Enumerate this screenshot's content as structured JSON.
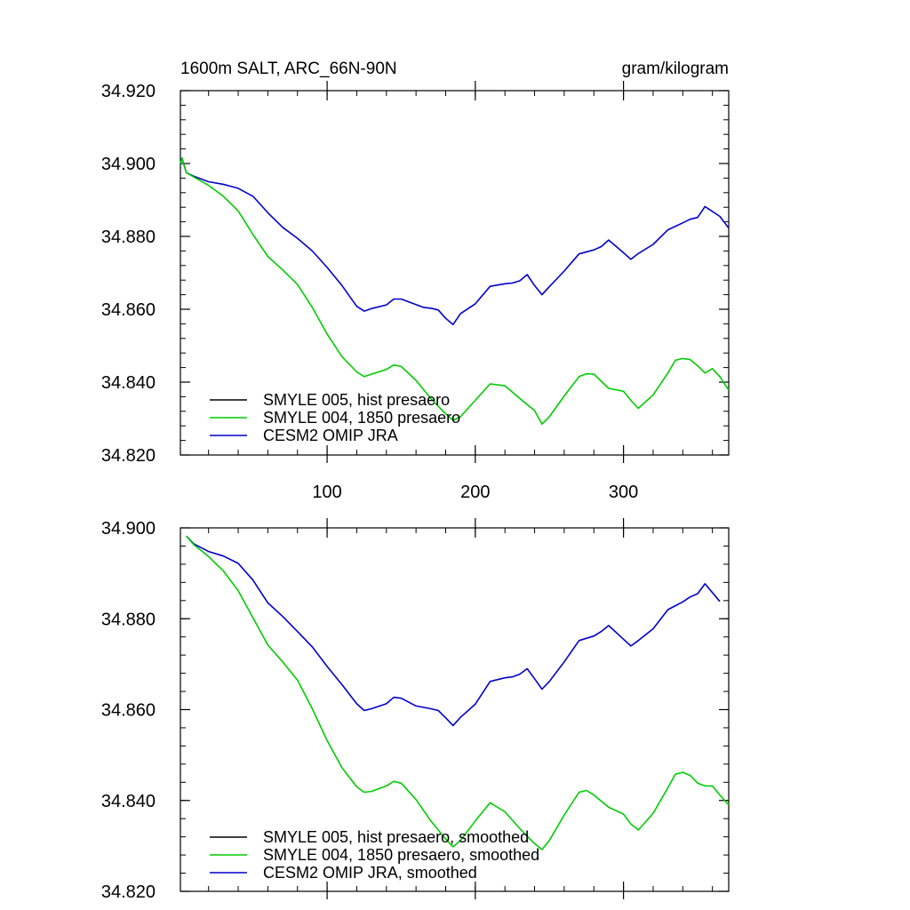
{
  "header": {
    "title": "1600m SALT, ARC_66N-90N",
    "units": "gram/kilogram"
  },
  "colors": {
    "smyle005": "#000000",
    "smyle004": "#00cc00",
    "omip": "#0000cc"
  },
  "chart_data": [
    {
      "type": "line",
      "title": "1600m SALT, ARC_66N-90N",
      "units": "gram/kilogram",
      "xlabel": "",
      "ylabel": "",
      "xlim": [
        1,
        371
      ],
      "ylim": [
        34.82,
        34.92
      ],
      "xticks": [
        100,
        200,
        300
      ],
      "xtick_labels": [
        "100",
        "200",
        "300"
      ],
      "yticks": [
        34.82,
        34.84,
        34.86,
        34.88,
        34.9,
        34.92
      ],
      "ytick_labels": [
        "34.820",
        "34.840",
        "34.860",
        "34.880",
        "34.900",
        "34.920"
      ],
      "legend": [
        "SMYLE 005, hist presaero",
        "SMYLE 004, 1850 presaero",
        "CESM2 OMIP JRA"
      ],
      "series": [
        {
          "name": "CESM2 OMIP JRA",
          "color": "#0000cc",
          "x": [
            1,
            2,
            5,
            10,
            20,
            30,
            40,
            50,
            60,
            70,
            80,
            90,
            100,
            110,
            120,
            125,
            130,
            140,
            145,
            150,
            160,
            165,
            170,
            175,
            180,
            185,
            190,
            200,
            210,
            220,
            225,
            230,
            235,
            240,
            245,
            250,
            260,
            270,
            280,
            285,
            290,
            300,
            305,
            310,
            320,
            330,
            340,
            345,
            350,
            355,
            365,
            371
          ],
          "y": [
            34.9,
            34.9015,
            34.8975,
            34.8965,
            34.895,
            34.8943,
            34.8932,
            34.891,
            34.8865,
            34.8825,
            34.8795,
            34.876,
            34.8715,
            34.8665,
            34.8608,
            34.8595,
            34.8602,
            34.8612,
            34.8628,
            34.8628,
            34.8613,
            34.8605,
            34.8603,
            34.8598,
            34.8575,
            34.8558,
            34.8588,
            34.8615,
            34.8663,
            34.867,
            34.8672,
            34.8678,
            34.8695,
            34.8665,
            34.864,
            34.8662,
            34.8705,
            34.8752,
            34.8763,
            34.8772,
            34.879,
            34.8755,
            34.8737,
            34.8753,
            34.8778,
            34.8818,
            34.8837,
            34.8847,
            34.8852,
            34.8882,
            34.8855,
            34.8823
          ]
        },
        {
          "name": "SMYLE 004, 1850 presaero",
          "color": "#00cc00",
          "x": [
            1,
            2,
            5,
            10,
            20,
            30,
            40,
            50,
            60,
            70,
            80,
            90,
            100,
            110,
            120,
            125,
            130,
            140,
            145,
            150,
            160,
            170,
            180,
            185,
            190,
            200,
            210,
            220,
            230,
            240,
            245,
            250,
            260,
            270,
            275,
            280,
            290,
            300,
            305,
            310,
            320,
            330,
            335,
            340,
            345,
            350,
            355,
            360,
            365,
            371
          ],
          "y": [
            34.9,
            34.9015,
            34.8975,
            34.8963,
            34.894,
            34.891,
            34.887,
            34.8805,
            34.8745,
            34.8708,
            34.8668,
            34.8605,
            34.8532,
            34.847,
            34.8428,
            34.8415,
            34.8422,
            34.8435,
            34.8447,
            34.8443,
            34.8405,
            34.8355,
            34.8313,
            34.8295,
            34.8305,
            34.835,
            34.8395,
            34.839,
            34.8355,
            34.8322,
            34.8285,
            34.8305,
            34.8362,
            34.8415,
            34.8423,
            34.8422,
            34.8383,
            34.8375,
            34.835,
            34.8328,
            34.8365,
            34.8425,
            34.846,
            34.8465,
            34.8462,
            34.8445,
            34.8425,
            34.8437,
            34.8415,
            34.8378
          ]
        }
      ]
    },
    {
      "type": "line",
      "title": "",
      "xlabel": "",
      "ylabel": "",
      "xlim": [
        1,
        371
      ],
      "ylim": [
        34.82,
        34.9
      ],
      "xticks": [
        100,
        200,
        300
      ],
      "xtick_labels": [],
      "yticks": [
        34.82,
        34.84,
        34.86,
        34.88,
        34.9
      ],
      "ytick_labels": [
        "34.820",
        "34.840",
        "34.860",
        "34.880",
        "34.900"
      ],
      "legend": [
        "SMYLE 005, hist presaero, smoothed",
        "SMYLE 004, 1850 presaero, smoothed",
        "CESM2 OMIP JRA, smoothed"
      ],
      "series": [
        {
          "name": "CESM2 OMIP JRA, smoothed",
          "color": "#0000cc",
          "x": [
            5,
            10,
            20,
            30,
            40,
            50,
            60,
            70,
            80,
            90,
            100,
            110,
            120,
            125,
            130,
            140,
            145,
            150,
            160,
            170,
            175,
            180,
            185,
            190,
            200,
            210,
            220,
            225,
            230,
            235,
            240,
            245,
            250,
            260,
            270,
            280,
            285,
            290,
            300,
            305,
            310,
            320,
            330,
            340,
            345,
            350,
            355,
            365
          ],
          "y": [
            34.8982,
            34.8965,
            34.8948,
            34.8938,
            34.8922,
            34.8885,
            34.8835,
            34.8805,
            34.8772,
            34.8738,
            34.8695,
            34.8655,
            34.8613,
            34.8598,
            34.8602,
            34.8613,
            34.8627,
            34.8625,
            34.8608,
            34.8602,
            34.8598,
            34.8582,
            34.8565,
            34.8583,
            34.8612,
            34.8662,
            34.867,
            34.8672,
            34.8678,
            34.869,
            34.8668,
            34.8645,
            34.8662,
            34.8705,
            34.8752,
            34.8762,
            34.8772,
            34.8785,
            34.8755,
            34.874,
            34.8752,
            34.8778,
            34.882,
            34.8837,
            34.8848,
            34.8855,
            34.8877,
            34.8838
          ]
        },
        {
          "name": "SMYLE 004, 1850 presaero, smoothed",
          "color": "#00cc00",
          "x": [
            5,
            10,
            20,
            30,
            40,
            50,
            60,
            70,
            80,
            90,
            100,
            110,
            120,
            125,
            130,
            140,
            145,
            150,
            160,
            170,
            180,
            185,
            190,
            200,
            210,
            220,
            230,
            240,
            245,
            250,
            260,
            270,
            275,
            280,
            290,
            300,
            305,
            310,
            320,
            330,
            335,
            340,
            345,
            350,
            355,
            360,
            365,
            371
          ],
          "y": [
            34.8982,
            34.8963,
            34.8937,
            34.8905,
            34.8862,
            34.8802,
            34.8742,
            34.8705,
            34.8665,
            34.8602,
            34.8532,
            34.8472,
            34.843,
            34.8418,
            34.842,
            34.8432,
            34.8442,
            34.8438,
            34.8402,
            34.8355,
            34.8315,
            34.8298,
            34.8312,
            34.8355,
            34.8395,
            34.8375,
            34.8338,
            34.8305,
            34.8292,
            34.8312,
            34.8368,
            34.8418,
            34.8422,
            34.8412,
            34.8385,
            34.837,
            34.8348,
            34.8335,
            34.8372,
            34.8428,
            34.8458,
            34.8462,
            34.8455,
            34.8438,
            34.8432,
            34.8432,
            34.8412,
            34.839
          ]
        }
      ]
    }
  ]
}
